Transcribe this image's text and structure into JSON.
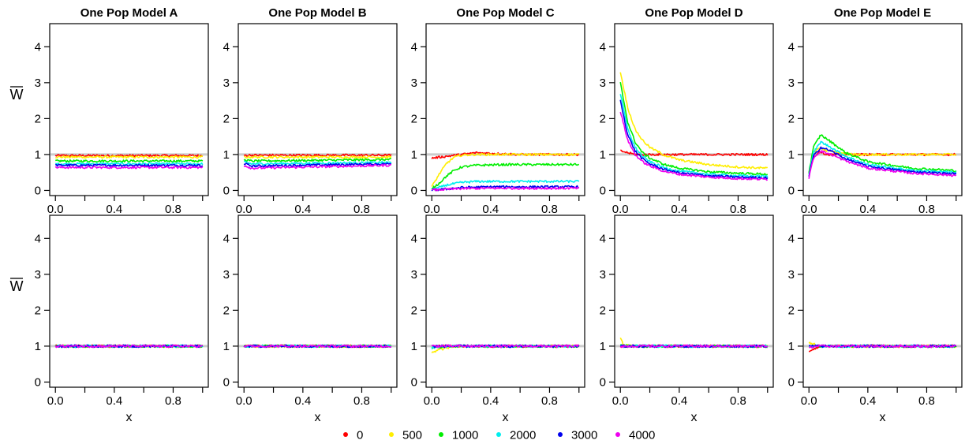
{
  "colors": {
    "0": "#ff0000",
    "500": "#ffee00",
    "1000": "#00ee00",
    "2000": "#00eeee",
    "3000": "#0000ee",
    "4000": "#ee00ee",
    "reference": "#cccccc"
  },
  "legend": {
    "items": [
      {
        "label": "0",
        "color": "#ff0000"
      },
      {
        "label": "500",
        "color": "#ffee00"
      },
      {
        "label": "1000",
        "color": "#00ee00"
      },
      {
        "label": "2000",
        "color": "#00eeee"
      },
      {
        "label": "3000",
        "color": "#0000ee"
      },
      {
        "label": "4000",
        "color": "#ee00ee"
      }
    ]
  },
  "chart_data": [
    {
      "type": "line",
      "row": 1,
      "title": "One Pop Model A",
      "xlabel": "",
      "ylabel": "W̄",
      "xlim": [
        0,
        1
      ],
      "ylim": [
        0,
        4.5
      ],
      "xticks": [
        "0.0",
        "0.4",
        "0.8"
      ],
      "yticks": [
        "0",
        "1",
        "2",
        "3",
        "4"
      ],
      "reference_line": 1,
      "series": [
        {
          "name": "0",
          "x": [
            0,
            1
          ],
          "y": [
            0.97,
            0.97
          ]
        },
        {
          "name": "500",
          "x": [
            0,
            1
          ],
          "y": [
            0.93,
            0.93
          ]
        },
        {
          "name": "1000",
          "x": [
            0,
            1
          ],
          "y": [
            0.82,
            0.82
          ]
        },
        {
          "name": "2000",
          "x": [
            0,
            1
          ],
          "y": [
            0.74,
            0.74
          ]
        },
        {
          "name": "3000",
          "x": [
            0,
            1
          ],
          "y": [
            0.7,
            0.7
          ]
        },
        {
          "name": "4000",
          "x": [
            0,
            1
          ],
          "y": [
            0.64,
            0.64
          ]
        }
      ]
    },
    {
      "type": "line",
      "row": 1,
      "title": "One Pop Model B",
      "xlabel": "",
      "ylabel": "",
      "xlim": [
        0,
        1
      ],
      "ylim": [
        0,
        4.5
      ],
      "xticks": [
        "0.0",
        "0.4",
        "0.8"
      ],
      "yticks": [
        "0",
        "1",
        "2",
        "3",
        "4"
      ],
      "reference_line": 1,
      "series": [
        {
          "name": "0",
          "x": [
            0,
            1
          ],
          "y": [
            0.98,
            0.98
          ]
        },
        {
          "name": "500",
          "x": [
            0,
            1
          ],
          "y": [
            0.93,
            0.93
          ]
        },
        {
          "name": "1000",
          "x": [
            0,
            0.05,
            1
          ],
          "y": [
            0.85,
            0.82,
            0.86
          ]
        },
        {
          "name": "2000",
          "x": [
            0,
            0.05,
            1
          ],
          "y": [
            0.8,
            0.74,
            0.78
          ]
        },
        {
          "name": "3000",
          "x": [
            0,
            0.05,
            1
          ],
          "y": [
            0.75,
            0.68,
            0.74
          ]
        },
        {
          "name": "4000",
          "x": [
            0,
            0.05,
            1
          ],
          "y": [
            0.7,
            0.62,
            0.7
          ]
        }
      ]
    },
    {
      "type": "line",
      "row": 1,
      "title": "One Pop Model C",
      "xlabel": "",
      "ylabel": "",
      "xlim": [
        0,
        1
      ],
      "ylim": [
        0,
        4.5
      ],
      "xticks": [
        "0.0",
        "0.4",
        "0.8"
      ],
      "yticks": [
        "0",
        "1",
        "2",
        "3",
        "4"
      ],
      "reference_line": 1,
      "series": [
        {
          "name": "0",
          "x": [
            0,
            0.1,
            0.3,
            0.6,
            1
          ],
          "y": [
            0.9,
            0.95,
            1.05,
            1.0,
            1.0
          ]
        },
        {
          "name": "500",
          "x": [
            0,
            0.05,
            0.1,
            0.15,
            0.2,
            0.3,
            0.5,
            1
          ],
          "y": [
            0.1,
            0.45,
            0.75,
            0.92,
            0.98,
            1.0,
            1.0,
            1.0
          ]
        },
        {
          "name": "1000",
          "x": [
            0,
            0.05,
            0.1,
            0.15,
            0.2,
            0.3,
            0.5,
            1
          ],
          "y": [
            0.05,
            0.2,
            0.4,
            0.55,
            0.65,
            0.7,
            0.72,
            0.72
          ]
        },
        {
          "name": "2000",
          "x": [
            0,
            0.05,
            0.1,
            0.2,
            0.3,
            0.5,
            1
          ],
          "y": [
            0.02,
            0.08,
            0.15,
            0.22,
            0.25,
            0.25,
            0.25
          ]
        },
        {
          "name": "3000",
          "x": [
            0,
            0.1,
            0.2,
            0.4,
            1
          ],
          "y": [
            0.01,
            0.04,
            0.08,
            0.1,
            0.1
          ]
        },
        {
          "name": "4000",
          "x": [
            0,
            0.1,
            0.2,
            0.4,
            1
          ],
          "y": [
            0.01,
            0.03,
            0.05,
            0.06,
            0.06
          ]
        }
      ]
    },
    {
      "type": "line",
      "row": 1,
      "title": "One Pop Model D",
      "xlabel": "",
      "ylabel": "",
      "xlim": [
        0,
        1
      ],
      "ylim": [
        0,
        4.5
      ],
      "xticks": [
        "0.0",
        "0.4",
        "0.8"
      ],
      "yticks": [
        "0",
        "1",
        "2",
        "3",
        "4"
      ],
      "reference_line": 1,
      "series": [
        {
          "name": "0",
          "x": [
            0,
            0.05,
            0.1,
            0.2,
            0.4,
            1
          ],
          "y": [
            1.1,
            1.05,
            1.0,
            1.0,
            1.0,
            1.0
          ]
        },
        {
          "name": "500",
          "x": [
            0,
            0.05,
            0.1,
            0.15,
            0.2,
            0.3,
            0.4,
            0.6,
            0.8,
            1
          ],
          "y": [
            3.3,
            2.3,
            1.7,
            1.4,
            1.2,
            0.98,
            0.85,
            0.72,
            0.65,
            0.62
          ]
        },
        {
          "name": "1000",
          "x": [
            0,
            0.05,
            0.1,
            0.15,
            0.2,
            0.3,
            0.4,
            0.6,
            0.8,
            1
          ],
          "y": [
            3.0,
            1.9,
            1.35,
            1.05,
            0.9,
            0.72,
            0.62,
            0.52,
            0.48,
            0.45
          ]
        },
        {
          "name": "2000",
          "x": [
            0,
            0.05,
            0.1,
            0.15,
            0.2,
            0.3,
            0.4,
            0.6,
            0.8,
            1
          ],
          "y": [
            2.7,
            1.7,
            1.2,
            0.95,
            0.8,
            0.63,
            0.54,
            0.45,
            0.41,
            0.39
          ]
        },
        {
          "name": "3000",
          "x": [
            0,
            0.05,
            0.1,
            0.15,
            0.2,
            0.3,
            0.4,
            0.6,
            0.8,
            1
          ],
          "y": [
            2.5,
            1.55,
            1.1,
            0.88,
            0.74,
            0.58,
            0.49,
            0.41,
            0.37,
            0.35
          ]
        },
        {
          "name": "4000",
          "x": [
            0,
            0.05,
            0.1,
            0.15,
            0.2,
            0.3,
            0.4,
            0.6,
            0.8,
            1
          ],
          "y": [
            2.2,
            1.4,
            1.0,
            0.8,
            0.68,
            0.53,
            0.45,
            0.37,
            0.33,
            0.31
          ]
        }
      ]
    },
    {
      "type": "line",
      "row": 1,
      "title": "One Pop Model E",
      "xlabel": "",
      "ylabel": "",
      "xlim": [
        0,
        1
      ],
      "ylim": [
        0,
        4.5
      ],
      "xticks": [
        "0.0",
        "0.4",
        "0.8"
      ],
      "yticks": [
        "0",
        "1",
        "2",
        "3",
        "4"
      ],
      "reference_line": 1,
      "series": [
        {
          "name": "0",
          "x": [
            0,
            0.03,
            0.07,
            0.12,
            0.2,
            0.4,
            1
          ],
          "y": [
            0.5,
            0.9,
            1.1,
            1.0,
            1.0,
            1.0,
            1.0
          ]
        },
        {
          "name": "500",
          "x": [
            0,
            0.03,
            0.07,
            0.12,
            0.2,
            0.3,
            1
          ],
          "y": [
            0.5,
            1.0,
            1.2,
            1.1,
            1.05,
            1.0,
            1.0
          ]
        },
        {
          "name": "1000",
          "x": [
            0,
            0.03,
            0.08,
            0.15,
            0.25,
            0.4,
            0.7,
            1
          ],
          "y": [
            0.5,
            1.2,
            1.55,
            1.35,
            1.05,
            0.8,
            0.62,
            0.55
          ]
        },
        {
          "name": "2000",
          "x": [
            0,
            0.03,
            0.08,
            0.15,
            0.25,
            0.4,
            0.7,
            1
          ],
          "y": [
            0.45,
            1.05,
            1.35,
            1.2,
            0.95,
            0.72,
            0.56,
            0.5
          ]
        },
        {
          "name": "3000",
          "x": [
            0,
            0.03,
            0.08,
            0.15,
            0.25,
            0.4,
            0.7,
            1
          ],
          "y": [
            0.4,
            0.95,
            1.2,
            1.1,
            0.88,
            0.67,
            0.52,
            0.46
          ]
        },
        {
          "name": "4000",
          "x": [
            0,
            0.03,
            0.08,
            0.15,
            0.25,
            0.4,
            0.7,
            1
          ],
          "y": [
            0.35,
            0.9,
            1.1,
            1.0,
            0.82,
            0.62,
            0.48,
            0.42
          ]
        }
      ]
    },
    {
      "type": "line",
      "row": 2,
      "title": "",
      "xlabel": "x",
      "ylabel": "W̄",
      "xlim": [
        0,
        1
      ],
      "ylim": [
        0,
        4.5
      ],
      "xticks": [
        "0.0",
        "0.4",
        "0.8"
      ],
      "yticks": [
        "0",
        "1",
        "2",
        "3",
        "4"
      ],
      "reference_line": 1,
      "series": [
        {
          "name": "0",
          "x": [
            0,
            1
          ],
          "y": [
            1.0,
            1.0
          ]
        },
        {
          "name": "500",
          "x": [
            0,
            1
          ],
          "y": [
            1.0,
            1.0
          ]
        },
        {
          "name": "1000",
          "x": [
            0,
            1
          ],
          "y": [
            1.0,
            1.0
          ]
        },
        {
          "name": "2000",
          "x": [
            0,
            1
          ],
          "y": [
            1.0,
            1.0
          ]
        },
        {
          "name": "3000",
          "x": [
            0,
            1
          ],
          "y": [
            1.0,
            1.0
          ]
        },
        {
          "name": "4000",
          "x": [
            0,
            1
          ],
          "y": [
            1.0,
            1.0
          ]
        }
      ]
    },
    {
      "type": "line",
      "row": 2,
      "title": "",
      "xlabel": "x",
      "ylabel": "",
      "xlim": [
        0,
        1
      ],
      "ylim": [
        0,
        4.5
      ],
      "xticks": [
        "0.0",
        "0.4",
        "0.8"
      ],
      "yticks": [
        "0",
        "1",
        "2",
        "3",
        "4"
      ],
      "reference_line": 1,
      "series": [
        {
          "name": "0",
          "x": [
            0,
            1
          ],
          "y": [
            1.0,
            1.0
          ]
        },
        {
          "name": "500",
          "x": [
            0,
            1
          ],
          "y": [
            1.0,
            1.0
          ]
        },
        {
          "name": "1000",
          "x": [
            0,
            1
          ],
          "y": [
            1.0,
            1.0
          ]
        },
        {
          "name": "2000",
          "x": [
            0,
            1
          ],
          "y": [
            1.0,
            1.0
          ]
        },
        {
          "name": "3000",
          "x": [
            0,
            1
          ],
          "y": [
            1.0,
            1.0
          ]
        },
        {
          "name": "4000",
          "x": [
            0,
            1
          ],
          "y": [
            1.0,
            1.0
          ]
        }
      ]
    },
    {
      "type": "line",
      "row": 2,
      "title": "",
      "xlabel": "x",
      "ylabel": "",
      "xlim": [
        0,
        1
      ],
      "ylim": [
        0,
        4.5
      ],
      "xticks": [
        "0.0",
        "0.4",
        "0.8"
      ],
      "yticks": [
        "0",
        "1",
        "2",
        "3",
        "4"
      ],
      "reference_line": 1,
      "series": [
        {
          "name": "0",
          "x": [
            0,
            0.1,
            1
          ],
          "y": [
            1.0,
            1.0,
            1.0
          ]
        },
        {
          "name": "500",
          "x": [
            0,
            0.05,
            0.15,
            1
          ],
          "y": [
            0.8,
            0.9,
            1.0,
            1.0
          ]
        },
        {
          "name": "1000",
          "x": [
            0,
            0.1,
            1
          ],
          "y": [
            0.95,
            1.0,
            1.0
          ]
        },
        {
          "name": "2000",
          "x": [
            0,
            0.1,
            1
          ],
          "y": [
            0.95,
            1.0,
            1.0
          ]
        },
        {
          "name": "3000",
          "x": [
            0,
            0.1,
            1
          ],
          "y": [
            1.0,
            1.0,
            1.0
          ]
        },
        {
          "name": "4000",
          "x": [
            0,
            0.1,
            1
          ],
          "y": [
            1.0,
            1.0,
            1.0
          ]
        }
      ]
    },
    {
      "type": "line",
      "row": 2,
      "title": "",
      "xlabel": "x",
      "ylabel": "",
      "xlim": [
        0,
        1
      ],
      "ylim": [
        0,
        4.5
      ],
      "xticks": [
        "0.0",
        "0.4",
        "0.8"
      ],
      "yticks": [
        "0",
        "1",
        "2",
        "3",
        "4"
      ],
      "reference_line": 1,
      "series": [
        {
          "name": "0",
          "x": [
            0,
            1
          ],
          "y": [
            1.0,
            1.0
          ]
        },
        {
          "name": "500",
          "x": [
            0,
            0.02,
            0.06,
            1
          ],
          "y": [
            1.25,
            1.05,
            1.0,
            1.0
          ]
        },
        {
          "name": "1000",
          "x": [
            0,
            0.03,
            1
          ],
          "y": [
            1.05,
            1.0,
            1.0
          ]
        },
        {
          "name": "2000",
          "x": [
            0,
            1
          ],
          "y": [
            1.0,
            1.0
          ]
        },
        {
          "name": "3000",
          "x": [
            0,
            1
          ],
          "y": [
            1.0,
            1.0
          ]
        },
        {
          "name": "4000",
          "x": [
            0,
            1
          ],
          "y": [
            1.0,
            1.0
          ]
        }
      ]
    },
    {
      "type": "line",
      "row": 2,
      "title": "",
      "xlabel": "x",
      "ylabel": "",
      "xlim": [
        0,
        1
      ],
      "ylim": [
        0,
        4.5
      ],
      "xticks": [
        "0.0",
        "0.4",
        "0.8"
      ],
      "yticks": [
        "0",
        "1",
        "2",
        "3",
        "4"
      ],
      "reference_line": 1,
      "series": [
        {
          "name": "0",
          "x": [
            0,
            0.04,
            0.1,
            1
          ],
          "y": [
            0.85,
            0.95,
            1.0,
            1.0
          ]
        },
        {
          "name": "500",
          "x": [
            0,
            0.03,
            0.1,
            1
          ],
          "y": [
            1.1,
            1.05,
            1.0,
            1.0
          ]
        },
        {
          "name": "1000",
          "x": [
            0,
            0.05,
            1
          ],
          "y": [
            1.0,
            1.0,
            1.0
          ]
        },
        {
          "name": "2000",
          "x": [
            0,
            1
          ],
          "y": [
            1.0,
            1.0
          ]
        },
        {
          "name": "3000",
          "x": [
            0,
            1
          ],
          "y": [
            1.0,
            1.0
          ]
        },
        {
          "name": "4000",
          "x": [
            0,
            0.05,
            1
          ],
          "y": [
            0.95,
            1.0,
            1.0
          ]
        }
      ]
    }
  ]
}
